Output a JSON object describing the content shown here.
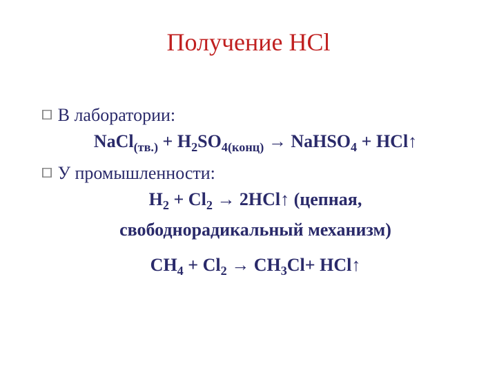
{
  "title_color": "#c02020",
  "text_color": "#2a2a6a",
  "title": "Получение  HCl",
  "sections": [
    {
      "bullet_label": "В лаборатории:",
      "equations": [
        {
          "parts": [
            {
              "t": "NaCl"
            },
            {
              "t": "(тв.)",
              "sub": true
            },
            {
              "t": " + H"
            },
            {
              "t": "2",
              "sub": true
            },
            {
              "t": "SO"
            },
            {
              "t": "4(конц)",
              "sub": true
            },
            {
              "t": " → NaHSO"
            },
            {
              "t": "4",
              "sub": true
            },
            {
              "t": " + HCl↑"
            }
          ]
        }
      ]
    },
    {
      "bullet_label": "У промышленности:",
      "equations": [
        {
          "parts": [
            {
              "t": "H"
            },
            {
              "t": "2",
              "sub": true
            },
            {
              "t": " + Cl"
            },
            {
              "t": "2",
              "sub": true
            },
            {
              "t": " → 2HCl↑ (цепная,"
            }
          ],
          "continuation": "свободнорадикальный механизм)"
        },
        {
          "parts": [
            {
              "t": "CH"
            },
            {
              "t": "4",
              "sub": true
            },
            {
              "t": " + Cl"
            },
            {
              "t": "2",
              "sub": true
            },
            {
              "t": " → CH"
            },
            {
              "t": "3",
              "sub": true
            },
            {
              "t": "Cl+ HCl↑"
            }
          ]
        }
      ]
    }
  ]
}
